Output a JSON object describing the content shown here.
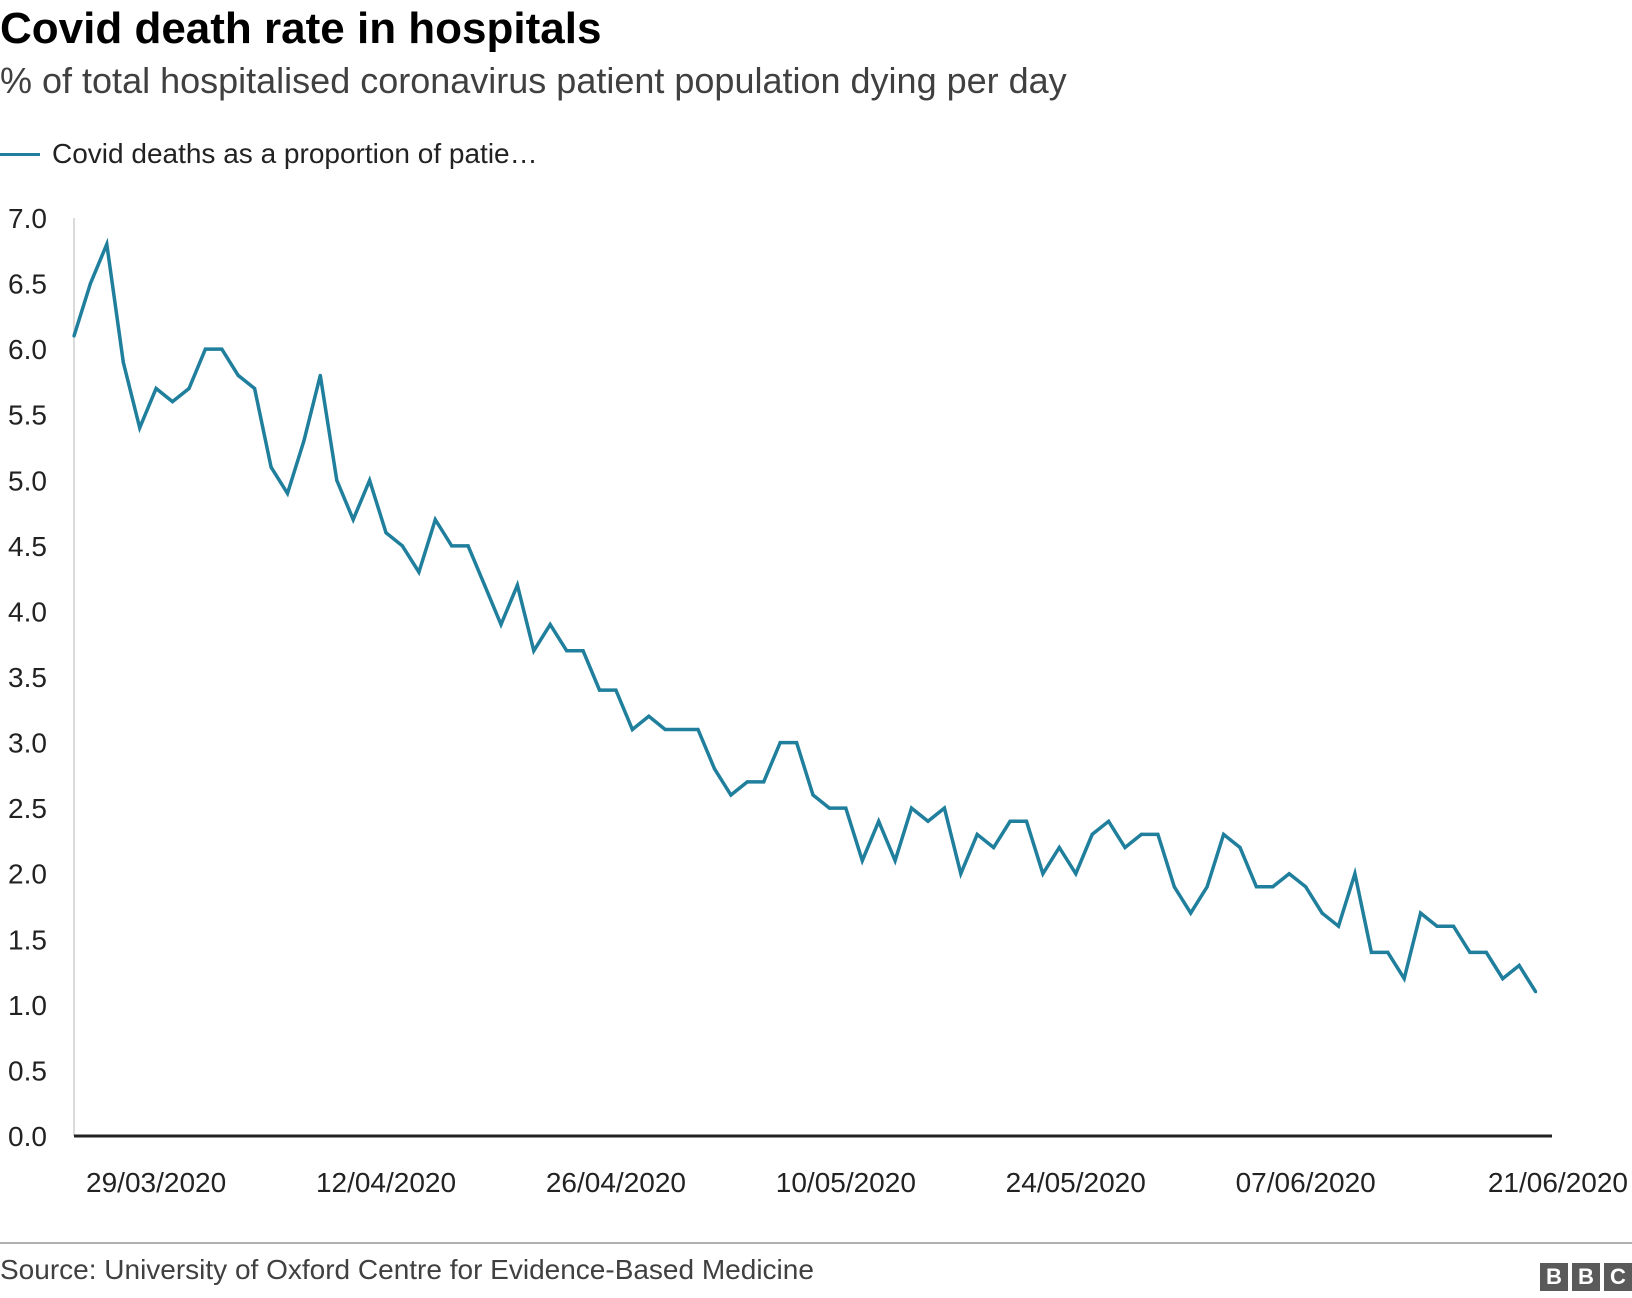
{
  "chart_data": {
    "type": "line",
    "title": "Covid death rate in hospitals",
    "subtitle": "% of total hospitalised coronavirus patient population dying per day",
    "legend": {
      "placement": "top-left"
    },
    "series": [
      {
        "name": "Covid deaths as a proportion of patie…",
        "color": "#1f7f9c",
        "start_date": "2020-03-24",
        "values": [
          6.1,
          6.5,
          6.8,
          5.9,
          5.4,
          5.7,
          5.6,
          5.7,
          6.0,
          6.0,
          5.8,
          5.7,
          5.1,
          4.9,
          5.3,
          5.8,
          5.0,
          4.7,
          5.0,
          4.6,
          4.5,
          4.3,
          4.7,
          4.5,
          4.5,
          4.2,
          3.9,
          4.2,
          3.7,
          3.9,
          3.7,
          3.7,
          3.4,
          3.4,
          3.1,
          3.2,
          3.1,
          3.1,
          3.1,
          2.8,
          2.6,
          2.7,
          2.7,
          3.0,
          3.0,
          2.6,
          2.5,
          2.5,
          2.1,
          2.4,
          2.1,
          2.5,
          2.4,
          2.5,
          2.0,
          2.3,
          2.2,
          2.4,
          2.4,
          2.0,
          2.2,
          2.0,
          2.3,
          2.4,
          2.2,
          2.3,
          2.3,
          1.9,
          1.7,
          1.9,
          2.3,
          2.2,
          1.9,
          1.9,
          2.0,
          1.9,
          1.7,
          1.6,
          2.0,
          1.4,
          1.4,
          1.2,
          1.7,
          1.6,
          1.6,
          1.4,
          1.4,
          1.2,
          1.3,
          1.1
        ]
      }
    ],
    "x_ticks": [
      {
        "date": "2020-03-29",
        "label": "29/03/2020"
      },
      {
        "date": "2020-04-12",
        "label": "12/04/2020"
      },
      {
        "date": "2020-04-26",
        "label": "26/04/2020"
      },
      {
        "date": "2020-05-10",
        "label": "10/05/2020"
      },
      {
        "date": "2020-05-24",
        "label": "24/05/2020"
      },
      {
        "date": "2020-06-07",
        "label": "07/06/2020"
      },
      {
        "date": "2020-06-21",
        "label": "21/06/2020"
      }
    ],
    "xlim": [
      "2020-03-24",
      "2020-06-22"
    ],
    "ylim": [
      0,
      7
    ],
    "y_ticks": [
      "0.0",
      "0.5",
      "1.0",
      "1.5",
      "2.0",
      "2.5",
      "3.0",
      "3.5",
      "4.0",
      "4.5",
      "5.0",
      "5.5",
      "6.0",
      "6.5",
      "7.0"
    ],
    "grid": false,
    "axis_color": "#222222"
  },
  "footer": {
    "source": "Source: University of Oxford Centre for Evidence-Based Medicine",
    "logo_letters": [
      "B",
      "B",
      "C"
    ]
  }
}
